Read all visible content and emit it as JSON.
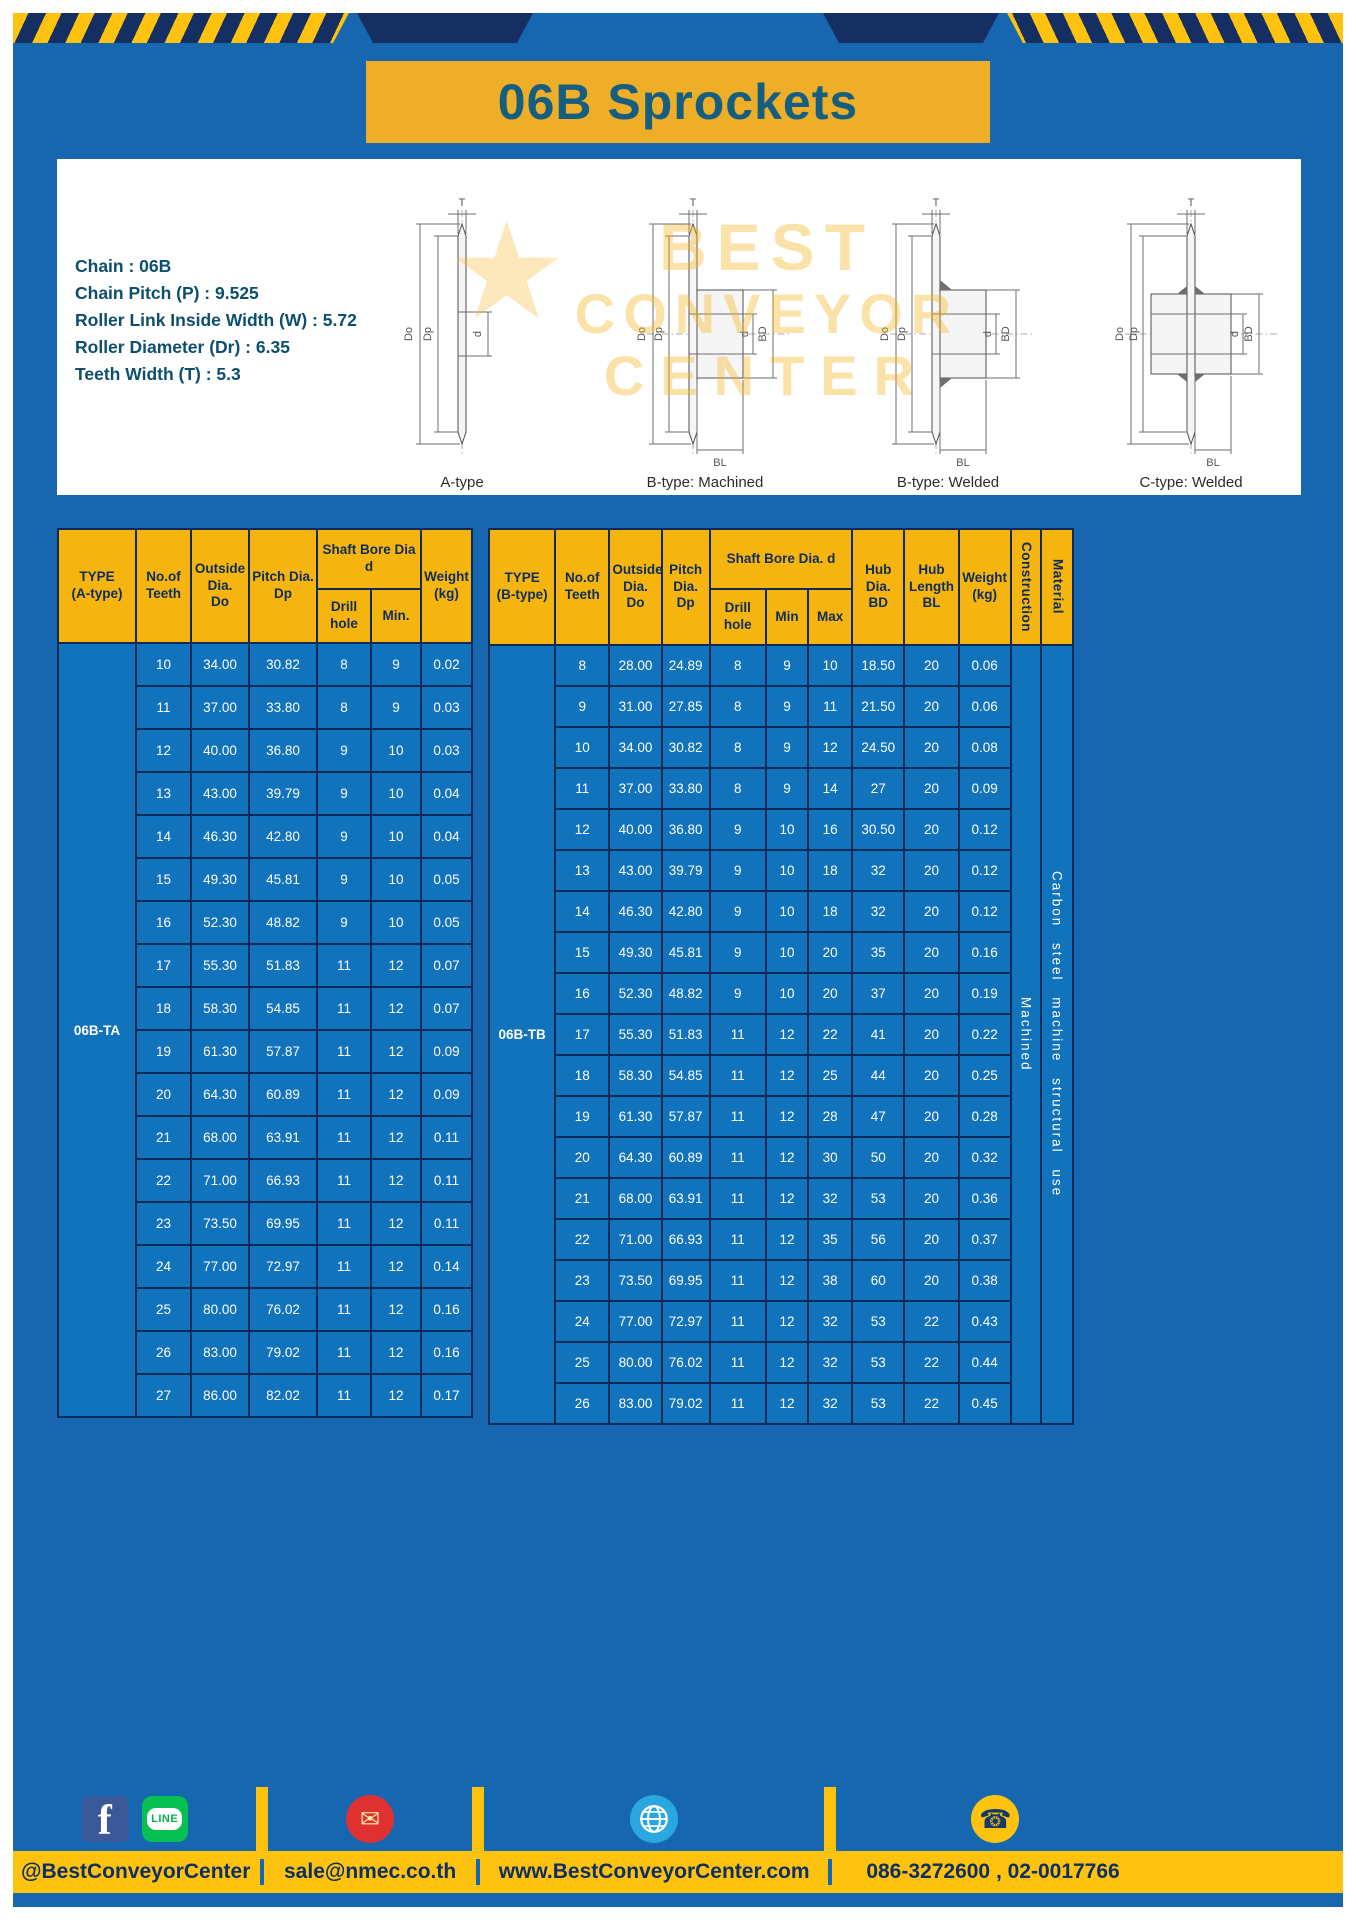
{
  "page": {
    "title": "06B Sprockets"
  },
  "specs": {
    "lines": [
      "Chain : 06B",
      "Chain Pitch (P) : 9.525",
      "Roller Link Inside Width (W) : 5.72",
      "Roller Diameter (Dr) : 6.35",
      "Teeth Width (T) : 5.3"
    ]
  },
  "drawings": {
    "captions": [
      "A-type",
      "B-type: Machined",
      "B-type: Welded",
      "C-type: Welded"
    ],
    "dim_labels": {
      "t": "T",
      "do": "Do",
      "dp": "Dp",
      "d": "d",
      "bd": "BD",
      "bl": "BL"
    }
  },
  "watermark": {
    "lines": [
      "BEST",
      "CONVEYOR",
      "CENTER"
    ],
    "star": "★"
  },
  "table_a": {
    "headers": {
      "type": "TYPE\n(A-type)",
      "teeth": "No.of\nTeeth",
      "outside": "Outside\nDia.\nDo",
      "pitch": "Pitch Dia.\nDp",
      "bore_group": "Shaft Bore Dia d",
      "drill": "Drill hole",
      "min": "Min.",
      "weight": "Weight\n(kg)"
    },
    "type_label": "06B-TA",
    "rows": [
      [
        "10",
        "34.00",
        "30.82",
        "8",
        "9",
        "0.02"
      ],
      [
        "11",
        "37.00",
        "33.80",
        "8",
        "9",
        "0.03"
      ],
      [
        "12",
        "40.00",
        "36.80",
        "9",
        "10",
        "0.03"
      ],
      [
        "13",
        "43.00",
        "39.79",
        "9",
        "10",
        "0.04"
      ],
      [
        "14",
        "46.30",
        "42.80",
        "9",
        "10",
        "0.04"
      ],
      [
        "15",
        "49.30",
        "45.81",
        "9",
        "10",
        "0.05"
      ],
      [
        "16",
        "52.30",
        "48.82",
        "9",
        "10",
        "0.05"
      ],
      [
        "17",
        "55.30",
        "51.83",
        "11",
        "12",
        "0.07"
      ],
      [
        "18",
        "58.30",
        "54.85",
        "11",
        "12",
        "0.07"
      ],
      [
        "19",
        "61.30",
        "57.87",
        "11",
        "12",
        "0.09"
      ],
      [
        "20",
        "64.30",
        "60.89",
        "11",
        "12",
        "0.09"
      ],
      [
        "21",
        "68.00",
        "63.91",
        "11",
        "12",
        "0.11"
      ],
      [
        "22",
        "71.00",
        "66.93",
        "11",
        "12",
        "0.11"
      ],
      [
        "23",
        "73.50",
        "69.95",
        "11",
        "12",
        "0.11"
      ],
      [
        "24",
        "77.00",
        "72.97",
        "11",
        "12",
        "0.14"
      ],
      [
        "25",
        "80.00",
        "76.02",
        "11",
        "12",
        "0.16"
      ],
      [
        "26",
        "83.00",
        "79.02",
        "11",
        "12",
        "0.16"
      ],
      [
        "27",
        "86.00",
        "82.02",
        "11",
        "12",
        "0.17"
      ]
    ]
  },
  "table_b": {
    "headers": {
      "type": "TYPE\n(B-type)",
      "teeth": "No.of\nTeeth",
      "outside": "Outside\nDia.\nDo",
      "pitch": "Pitch\nDia.\nDp",
      "bore_group": "Shaft Bore Dia.  d",
      "drill": "Drill hole",
      "min": "Min",
      "max": "Max",
      "hub_dia": "Hub\nDia.\nBD",
      "hub_len": "Hub\nLength\nBL",
      "weight": "Weight\n(kg)",
      "construction": "Construction",
      "material": "Material"
    },
    "type_label": "06B-TB",
    "construction_value": "Machined",
    "material_value": "Carbon steel machine structural use",
    "rows": [
      [
        "8",
        "28.00",
        "24.89",
        "8",
        "9",
        "10",
        "18.50",
        "20",
        "0.06"
      ],
      [
        "9",
        "31.00",
        "27.85",
        "8",
        "9",
        "11",
        "21.50",
        "20",
        "0.06"
      ],
      [
        "10",
        "34.00",
        "30.82",
        "8",
        "9",
        "12",
        "24.50",
        "20",
        "0.08"
      ],
      [
        "11",
        "37.00",
        "33.80",
        "8",
        "9",
        "14",
        "27",
        "20",
        "0.09"
      ],
      [
        "12",
        "40.00",
        "36.80",
        "9",
        "10",
        "16",
        "30.50",
        "20",
        "0.12"
      ],
      [
        "13",
        "43.00",
        "39.79",
        "9",
        "10",
        "18",
        "32",
        "20",
        "0.12"
      ],
      [
        "14",
        "46.30",
        "42.80",
        "9",
        "10",
        "18",
        "32",
        "20",
        "0.12"
      ],
      [
        "15",
        "49.30",
        "45.81",
        "9",
        "10",
        "20",
        "35",
        "20",
        "0.16"
      ],
      [
        "16",
        "52.30",
        "48.82",
        "9",
        "10",
        "20",
        "37",
        "20",
        "0.19"
      ],
      [
        "17",
        "55.30",
        "51.83",
        "11",
        "12",
        "22",
        "41",
        "20",
        "0.22"
      ],
      [
        "18",
        "58.30",
        "54.85",
        "11",
        "12",
        "25",
        "44",
        "20",
        "0.25"
      ],
      [
        "19",
        "61.30",
        "57.87",
        "11",
        "12",
        "28",
        "47",
        "20",
        "0.28"
      ],
      [
        "20",
        "64.30",
        "60.89",
        "11",
        "12",
        "30",
        "50",
        "20",
        "0.32"
      ],
      [
        "21",
        "68.00",
        "63.91",
        "11",
        "12",
        "32",
        "53",
        "20",
        "0.36"
      ],
      [
        "22",
        "71.00",
        "66.93",
        "11",
        "12",
        "35",
        "56",
        "20",
        "0.37"
      ],
      [
        "23",
        "73.50",
        "69.95",
        "11",
        "12",
        "38",
        "60",
        "20",
        "0.38"
      ],
      [
        "24",
        "77.00",
        "72.97",
        "11",
        "12",
        "32",
        "53",
        "22",
        "0.43"
      ],
      [
        "25",
        "80.00",
        "76.02",
        "11",
        "12",
        "32",
        "53",
        "22",
        "0.44"
      ],
      [
        "26",
        "83.00",
        "79.02",
        "11",
        "12",
        "32",
        "53",
        "22",
        "0.45"
      ]
    ]
  },
  "footer": {
    "icons": {
      "facebook": "f",
      "line": "LINE",
      "email": "✉",
      "phone": "☎"
    },
    "social": "@BestConveyorCenter",
    "email": "sale@nmec.co.th",
    "website": "www.BestConveyorCenter.com",
    "phone": "086-3272600 , 02-0017766"
  },
  "colors": {
    "page_blue": "#1667b0",
    "cell_blue": "#1273bd",
    "border_navy": "#0d2b56",
    "header_yellow": "#f6b40f",
    "banner_yellow": "#efae27",
    "footer_yellow": "#ffc20e",
    "title_text": "#155e80"
  }
}
